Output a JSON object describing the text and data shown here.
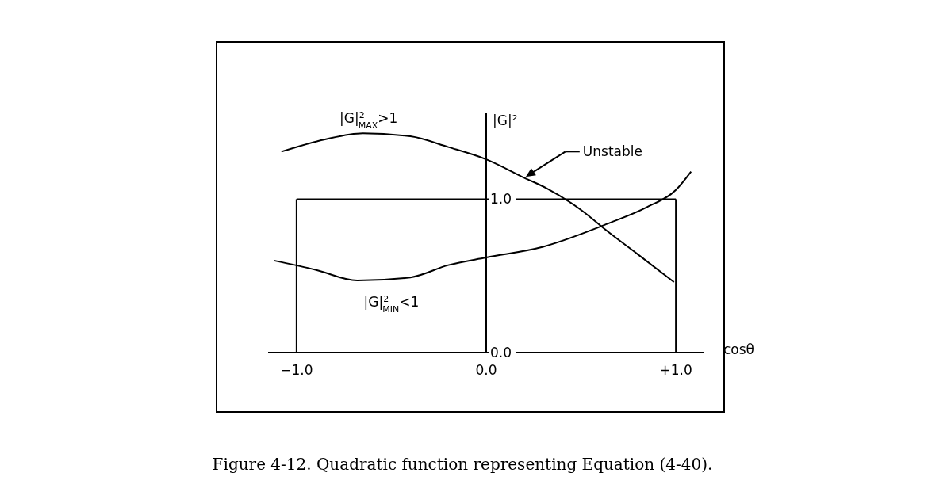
{
  "chart_data": {
    "type": "line",
    "title": "Figure 4-12. Quadratic function representing Equation (4-40).",
    "xlabel": "cosθ",
    "ylabel": "|G|²",
    "series": [
      {
        "color": "#000000",
        "x": [
          -1.08,
          -0.85,
          -0.65,
          -0.4,
          -0.2,
          0,
          0.2,
          0.32,
          0.5,
          0.64,
          0.8,
          0.99
        ],
        "values": [
          1.31,
          1.39,
          1.43,
          1.41,
          1.34,
          1.26,
          1.14,
          1.07,
          0.93,
          0.79,
          0.64,
          0.46
        ]
      },
      {
        "color": "#000000",
        "x": [
          -1.12,
          -0.9,
          -0.68,
          -0.4,
          -0.2,
          0,
          0.3,
          0.64,
          0.85,
          1.0,
          1.08
        ],
        "values": [
          0.6,
          0.54,
          0.47,
          0.49,
          0.57,
          0.62,
          0.69,
          0.84,
          0.95,
          1.06,
          1.18
        ]
      }
    ],
    "marker": "none",
    "line_style": "solid",
    "xlim": [
      -1.15,
      1.15
    ],
    "ylim": [
      0,
      1.56
    ],
    "xticks": [
      {
        "value": -1,
        "label": "−1.0"
      },
      {
        "value": 0,
        "label": "0.0"
      },
      {
        "value": 1,
        "label": "+1.0"
      }
    ],
    "yticks": [
      {
        "value": 0,
        "label": "0.0"
      },
      {
        "value": 1,
        "label": "1.0"
      }
    ],
    "ref_lines": [
      {
        "axis": "x",
        "value": -1,
        "color": "#000000"
      },
      {
        "axis": "x",
        "value": 1,
        "color": "#000000"
      },
      {
        "axis": "y",
        "value": 1,
        "color": "#000000"
      }
    ],
    "annotations": [
      "|G|$^{2}$$_{MAX}$>1",
      "|G|$^{2}$$_{MIN}$<1",
      "Unstable"
    ]
  }
}
